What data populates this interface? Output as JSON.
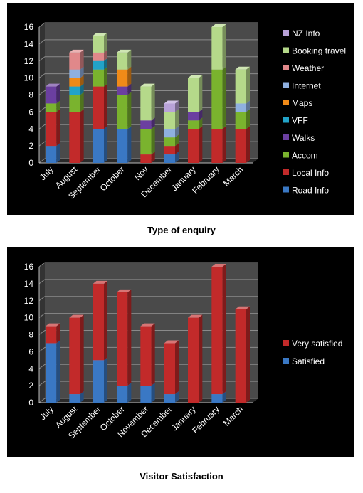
{
  "chart_data": [
    {
      "type": "bar",
      "stacked": true,
      "title": "Type of enquiry",
      "categories": [
        "July",
        "August",
        "September",
        "October",
        "Nov",
        "December",
        "January",
        "February",
        "March"
      ],
      "ylim": [
        0,
        16
      ],
      "yticks": [
        0,
        2,
        4,
        6,
        8,
        10,
        12,
        14,
        16
      ],
      "grid": true,
      "legend_position": "right",
      "series": [
        {
          "name": "Road Info",
          "color": "#3a78c4",
          "values": [
            2,
            0,
            4,
            4,
            0,
            1,
            0,
            0,
            0
          ]
        },
        {
          "name": "Local Info",
          "color": "#c22a2a",
          "values": [
            4,
            6,
            5,
            0,
            1,
            1,
            4,
            4,
            4
          ]
        },
        {
          "name": "Accom",
          "color": "#7ab32e",
          "values": [
            1,
            2,
            2,
            4,
            3,
            1,
            1,
            7,
            2
          ]
        },
        {
          "name": "Walks",
          "color": "#6b3fa0",
          "values": [
            2,
            0,
            0,
            1,
            1,
            0,
            1,
            0,
            0
          ]
        },
        {
          "name": "VFF",
          "color": "#22a3c8",
          "values": [
            0,
            1,
            1,
            0,
            0,
            0,
            0,
            0,
            0
          ]
        },
        {
          "name": "Maps",
          "color": "#f08a18",
          "values": [
            0,
            1,
            0,
            2,
            0,
            0,
            0,
            0,
            0
          ]
        },
        {
          "name": "Internet",
          "color": "#8fb0e0",
          "values": [
            0,
            1,
            0,
            0,
            0,
            1,
            0,
            0,
            1
          ]
        },
        {
          "name": "Weather",
          "color": "#e0888a",
          "values": [
            0,
            2,
            1,
            0,
            0,
            0,
            0,
            0,
            0
          ]
        },
        {
          "name": "Booking travel",
          "color": "#b5d98a",
          "values": [
            0,
            0,
            2,
            2,
            4,
            2,
            4,
            5,
            4
          ]
        },
        {
          "name": "NZ Info",
          "color": "#b8a2d8",
          "values": [
            0,
            0,
            0,
            0,
            0,
            1,
            0,
            0,
            0
          ]
        }
      ]
    },
    {
      "type": "bar",
      "stacked": true,
      "title": "Visitor Satisfaction",
      "categories": [
        "July",
        "August",
        "September",
        "October",
        "November",
        "December",
        "January",
        "February",
        "March"
      ],
      "ylim": [
        0,
        16
      ],
      "yticks": [
        0,
        2,
        4,
        6,
        8,
        10,
        12,
        14,
        16
      ],
      "grid": true,
      "legend_position": "right",
      "series": [
        {
          "name": "Satisfied",
          "color": "#3a78c4",
          "values": [
            7,
            1,
            5,
            2,
            2,
            1,
            0,
            1,
            0
          ]
        },
        {
          "name": "Very satisfied",
          "color": "#c22a2a",
          "values": [
            2,
            9,
            9,
            11,
            7,
            6,
            10,
            15,
            11
          ]
        }
      ]
    }
  ]
}
